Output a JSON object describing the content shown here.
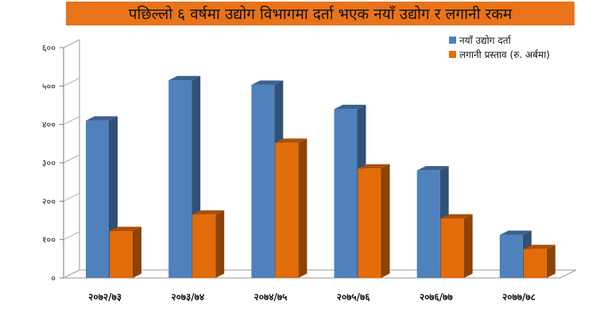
{
  "chart_data": {
    "type": "bar",
    "title": "पछिल्लो ६ वर्षमा उद्योग विभागमा दर्ता भएक नयाँ उद्योग र लगानी रकम",
    "categories": [
      "२०७२/७३",
      "२०७३/७४",
      "२०७४/७५",
      "२०७५/७६",
      "२०७६/७७",
      "२०७७/७८"
    ],
    "series": [
      {
        "name": "नयाँ उद्योग दर्ता",
        "values": [
          410,
          515,
          503,
          440,
          280,
          112
        ],
        "color": "#4f81bd"
      },
      {
        "name": "लगानी प्रस्ताव (रु. अर्बमा)",
        "values": [
          122,
          165,
          352,
          285,
          155,
          75
        ],
        "color": "#e36c0a"
      }
    ],
    "ylim": [
      0,
      600
    ],
    "yticks": [
      0,
      100,
      200,
      300,
      400,
      500,
      600
    ],
    "ytick_labels": [
      "०",
      "१००",
      "२००",
      "३००",
      "४००",
      "५००",
      "६००"
    ],
    "xlabel": "",
    "ylabel": "",
    "legend_position": "top-right",
    "grid": false,
    "style": "3d-column"
  }
}
